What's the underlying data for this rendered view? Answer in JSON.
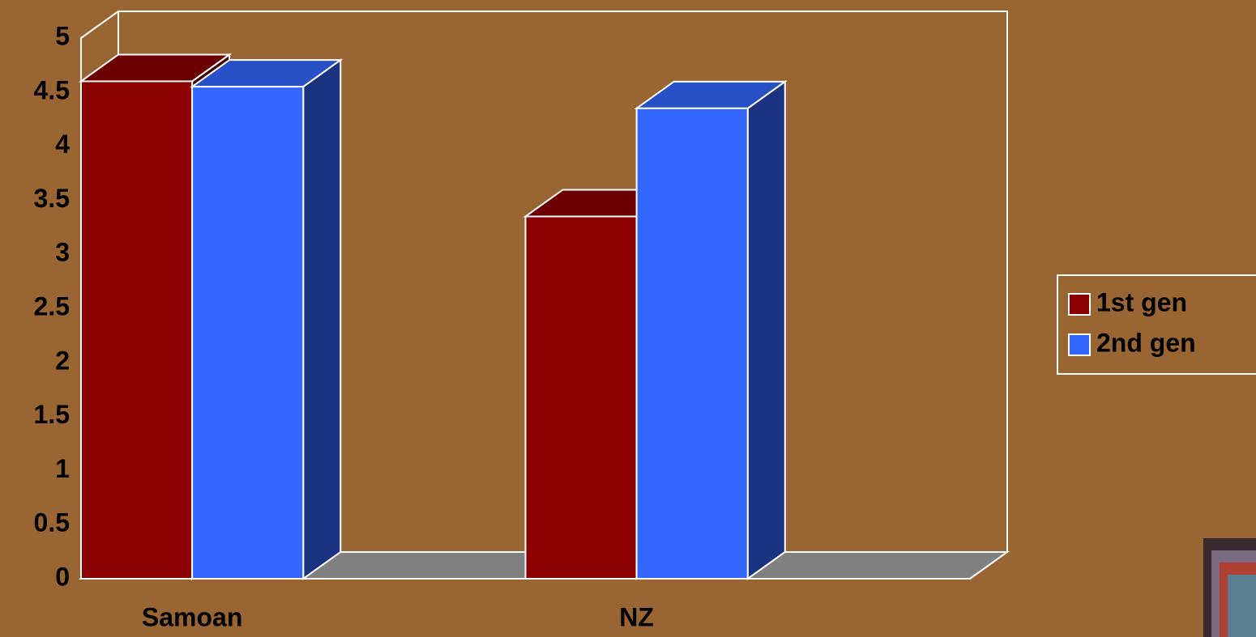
{
  "chart_data": {
    "type": "bar3d",
    "categories": [
      "Samoan",
      "NZ"
    ],
    "series": [
      {
        "name": "1st gen",
        "color": "#8b0000",
        "values": [
          4.6,
          3.35
        ]
      },
      {
        "name": "2nd gen",
        "color": "#3366ff",
        "values": [
          4.55,
          4.35
        ]
      }
    ],
    "ylim": [
      0,
      5
    ],
    "yticks": [
      0,
      0.5,
      1,
      1.5,
      2,
      2.5,
      3,
      3.5,
      4,
      4.5,
      5
    ],
    "legend": "right"
  }
}
